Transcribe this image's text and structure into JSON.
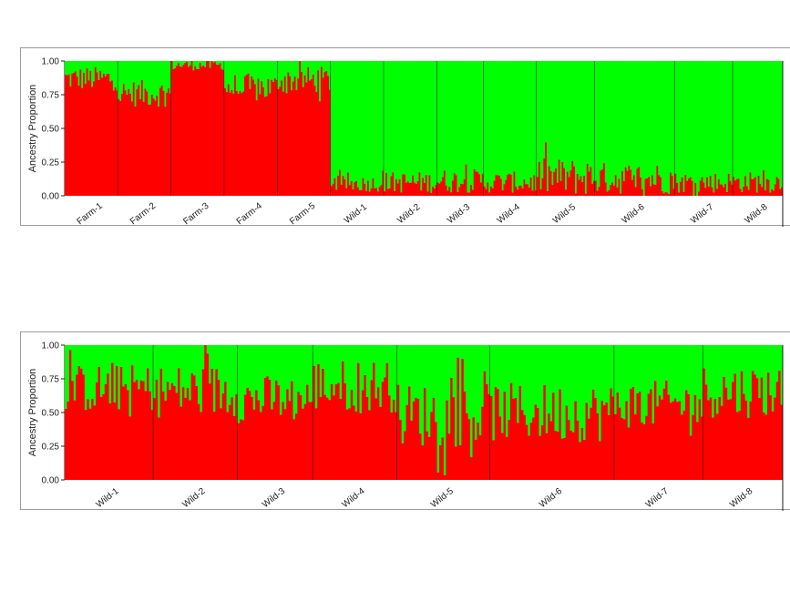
{
  "colors": {
    "cluster1": "#ff0000",
    "cluster2": "#00ff00",
    "separator": "#1a1a1a",
    "axis": "#222222"
  },
  "chart_data": [
    {
      "type": "bar",
      "subtype": "stacked-ancestry (STRUCTURE plot, K=2)",
      "ylabel": "Ancestry Proportion",
      "ylim": [
        0,
        1
      ],
      "yticks": [
        "0.00",
        "0.25",
        "0.50",
        "0.75",
        "1.00"
      ],
      "groups": [
        {
          "name": "Farm-1",
          "n": 32,
          "red_mean": 0.87,
          "spread": 0.09
        },
        {
          "name": "Farm-2",
          "n": 32,
          "red_mean": 0.76,
          "spread": 0.1
        },
        {
          "name": "Farm-3",
          "n": 32,
          "red_mean": 0.97,
          "spread": 0.04
        },
        {
          "name": "Farm-4",
          "n": 32,
          "red_mean": 0.8,
          "spread": 0.11
        },
        {
          "name": "Farm-5",
          "n": 32,
          "red_mean": 0.86,
          "spread": 0.1
        },
        {
          "name": "Wild-1",
          "n": 32,
          "red_mean": 0.09,
          "spread": 0.06
        },
        {
          "name": "Wild-2",
          "n": 32,
          "red_mean": 0.1,
          "spread": 0.08
        },
        {
          "name": "Wild-3",
          "n": 28,
          "red_mean": 0.11,
          "spread": 0.09
        },
        {
          "name": "Wild-4",
          "n": 32,
          "red_mean": 0.1,
          "spread": 0.08
        },
        {
          "name": "Wild-5",
          "n": 35,
          "red_mean": 0.14,
          "spread": 0.14
        },
        {
          "name": "Wild-6",
          "n": 48,
          "red_mean": 0.13,
          "spread": 0.12
        },
        {
          "name": "Wild-7",
          "n": 35,
          "red_mean": 0.1,
          "spread": 0.08
        },
        {
          "name": "Wild-8",
          "n": 30,
          "red_mean": 0.1,
          "spread": 0.08
        }
      ]
    },
    {
      "type": "bar",
      "subtype": "stacked-ancestry (STRUCTURE plot, K=2)",
      "ylabel": "Ancestry Proportion",
      "ylim": [
        0,
        1
      ],
      "yticks": [
        "0.00",
        "0.25",
        "0.50",
        "0.75",
        "1.00"
      ],
      "groups": [
        {
          "name": "Wild-1",
          "n": 40,
          "red_mean": 0.68,
          "spread": 0.18
        },
        {
          "name": "Wild-2",
          "n": 38,
          "red_mean": 0.66,
          "spread": 0.2
        },
        {
          "name": "Wild-3",
          "n": 34,
          "red_mean": 0.6,
          "spread": 0.18
        },
        {
          "name": "Wild-4",
          "n": 38,
          "red_mean": 0.7,
          "spread": 0.2
        },
        {
          "name": "Wild-5",
          "n": 42,
          "red_mean": 0.48,
          "spread": 0.24
        },
        {
          "name": "Wild-6",
          "n": 56,
          "red_mean": 0.5,
          "spread": 0.22
        },
        {
          "name": "Wild-7",
          "n": 40,
          "red_mean": 0.56,
          "spread": 0.18
        },
        {
          "name": "Wild-8",
          "n": 36,
          "red_mean": 0.66,
          "spread": 0.2
        }
      ]
    }
  ]
}
